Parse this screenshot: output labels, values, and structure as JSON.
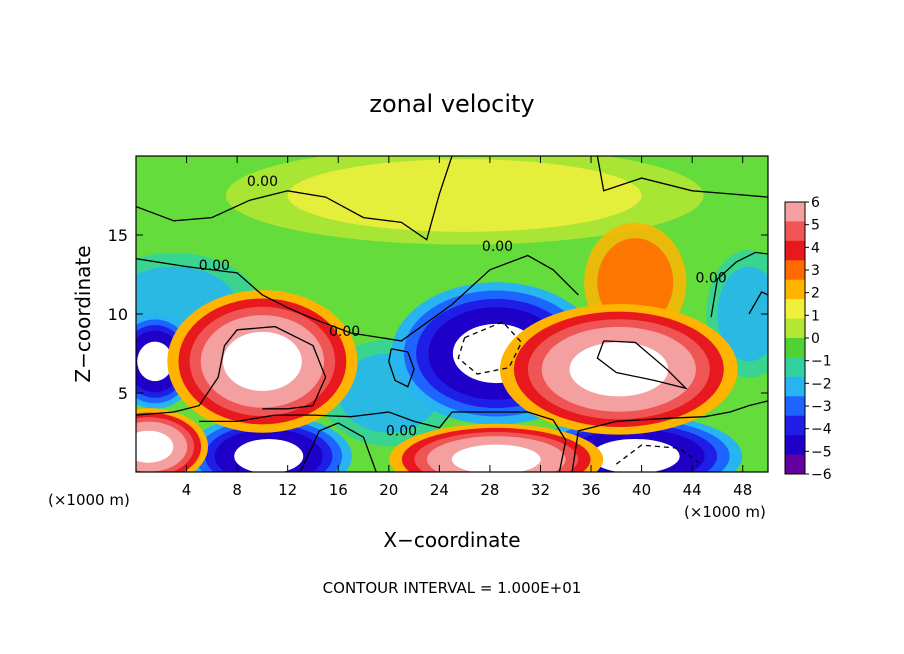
{
  "chart_data": {
    "type": "heatmap",
    "title": "zonal velocity",
    "xlabel": "X−coordinate",
    "ylabel": "Z−coordinate",
    "x_unit_left": "(×1000 m)",
    "x_unit_right": "(×1000 m)",
    "footer": "CONTOUR INTERVAL = 1.000E+01",
    "xlim": [
      0,
      50
    ],
    "ylim": [
      0,
      20
    ],
    "x_ticks": [
      4,
      8,
      12,
      16,
      20,
      24,
      28,
      32,
      36,
      40,
      44,
      48
    ],
    "y_ticks": [
      5,
      10,
      15
    ],
    "contour_label": "0.00",
    "colorbar": {
      "ticks": [
        6,
        5,
        4,
        3,
        2,
        1,
        0,
        -1,
        -2,
        -3,
        -4,
        -5,
        -6
      ],
      "tick_labels": [
        "6",
        "5",
        "4",
        "3",
        "2",
        "1",
        "0",
        "−1",
        "−2",
        "−3",
        "−4",
        "−5",
        "−6"
      ],
      "colors": [
        "#f4a0a0",
        "#ef5555",
        "#e8191e",
        "#ff6a00",
        "#ffb400",
        "#f0f03c",
        "#b4e632",
        "#50d232",
        "#32d2a0",
        "#28b4f0",
        "#1e64ff",
        "#1e1ee6",
        "#1e00c8",
        "#6400a0"
      ]
    },
    "background": "#64dc3c",
    "features": [
      {
        "kind": "positive-core",
        "cx": 10,
        "cy": 7,
        "rx": 4,
        "ry": 2.4
      },
      {
        "kind": "positive-core",
        "cx": 38.2,
        "cy": 6.5,
        "rx": 5,
        "ry": 2.2
      },
      {
        "kind": "negative-core",
        "cx": 28.5,
        "cy": 7.5,
        "rx": 4.4,
        "ry": 2.4
      },
      {
        "kind": "negative-core",
        "cx": 1.5,
        "cy": 7,
        "rx": 1.8,
        "ry": 1.6
      },
      {
        "kind": "negative-core",
        "cx": 10.5,
        "cy": 1,
        "rx": 3.5,
        "ry": 1.4
      },
      {
        "kind": "negative-core",
        "cx": 39.5,
        "cy": 1,
        "rx": 4.5,
        "ry": 1.4
      },
      {
        "kind": "positive-core",
        "cx": 28.5,
        "cy": 0.8,
        "rx": 4.5,
        "ry": 1.2
      },
      {
        "kind": "positive-core",
        "cx": 1,
        "cy": 1.6,
        "rx": 2.5,
        "ry": 1.3
      },
      {
        "kind": "yellow-band",
        "cx": 26,
        "cy": 17.5,
        "rx": 14,
        "ry": 2.3
      },
      {
        "kind": "orange-band",
        "cx": 39.5,
        "cy": 12,
        "rx": 3,
        "ry": 2.8
      },
      {
        "kind": "cyan-band",
        "cx": 3,
        "cy": 10.5,
        "rx": 5,
        "ry": 2.5
      },
      {
        "kind": "cyan-band",
        "cx": 48.5,
        "cy": 10,
        "rx": 2.5,
        "ry": 3
      },
      {
        "kind": "cyan-band",
        "cx": 20,
        "cy": 5,
        "rx": 4,
        "ry": 2.5
      }
    ]
  }
}
